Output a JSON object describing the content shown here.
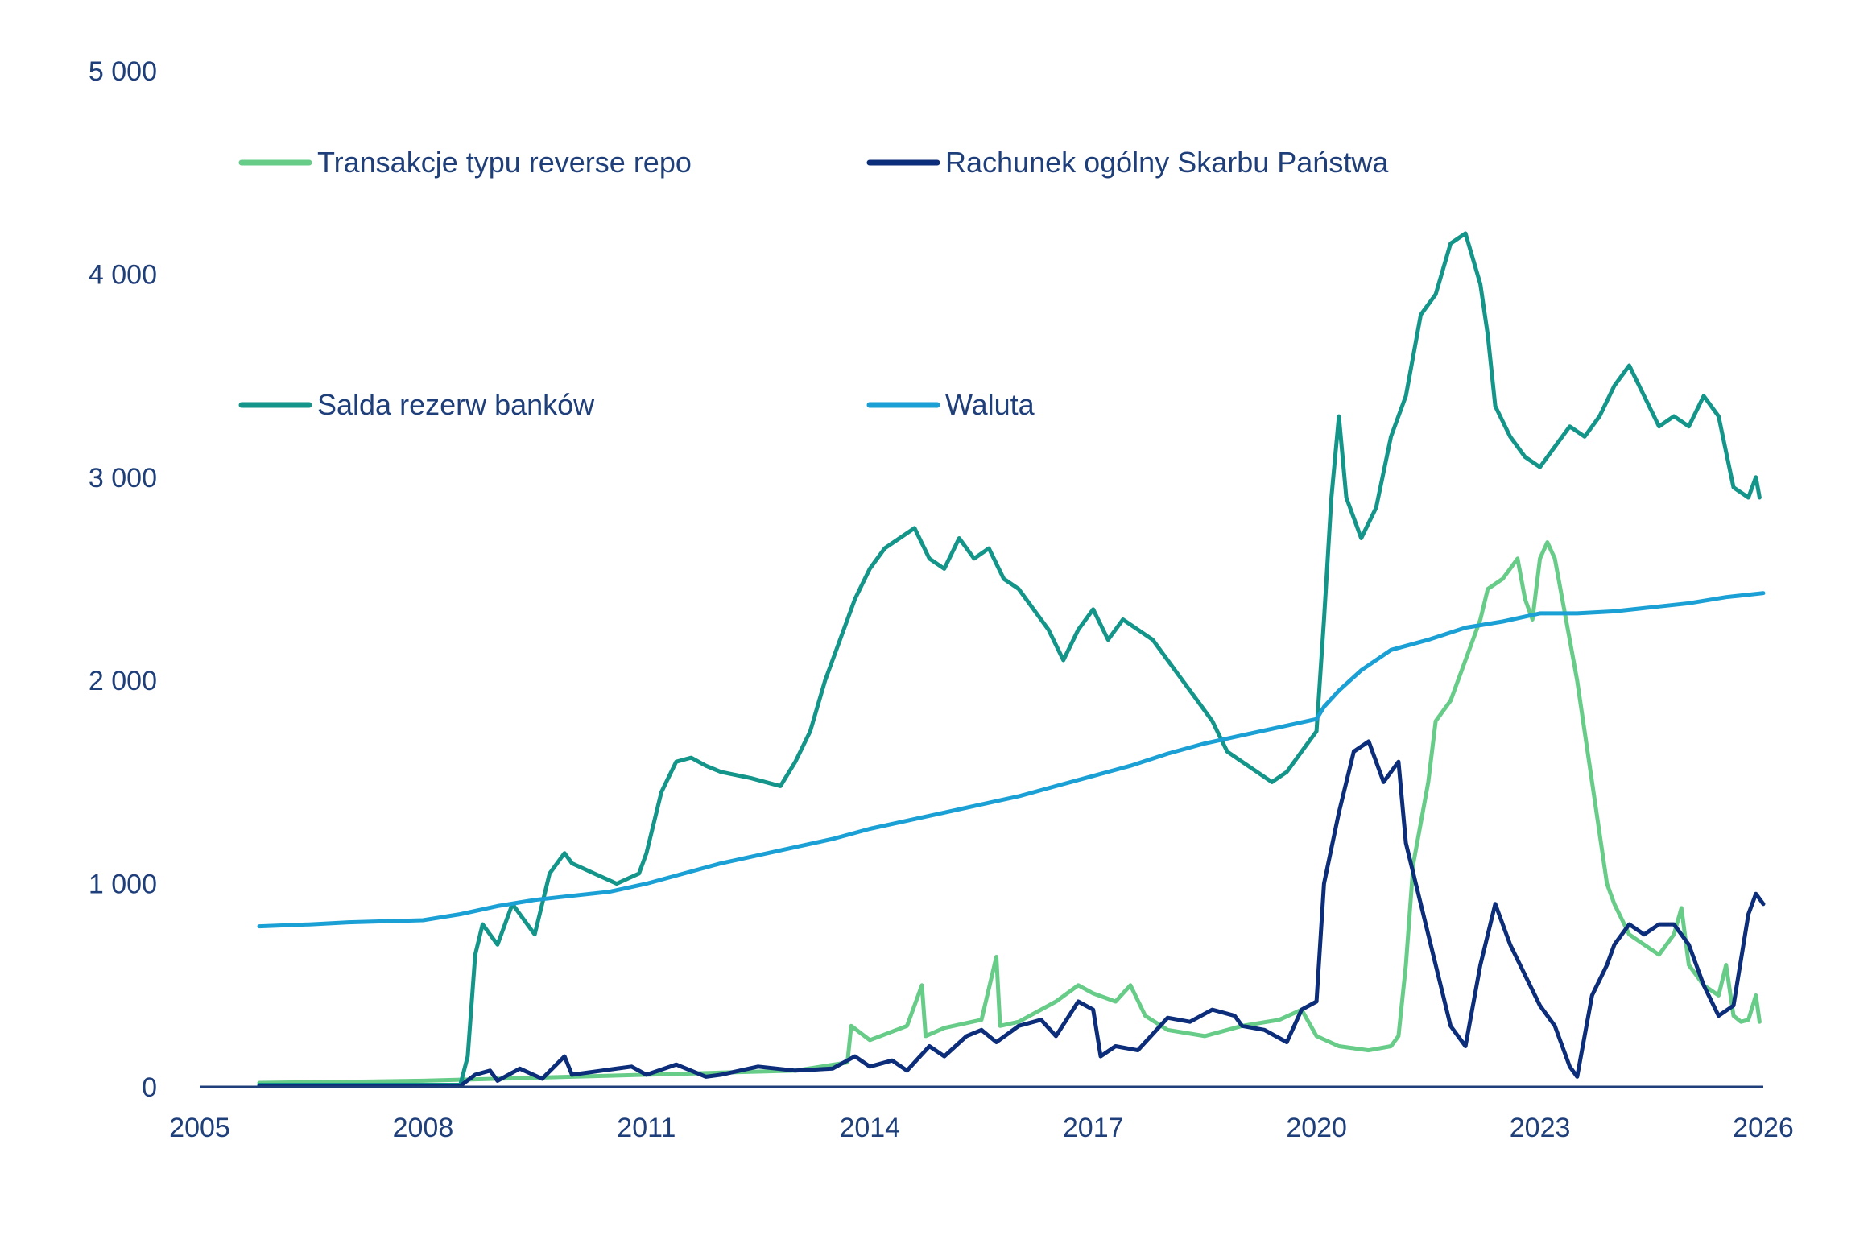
{
  "chart_data": {
    "type": "line",
    "title": "",
    "xlabel": "",
    "ylabel": "",
    "xlim": [
      2005,
      2026
    ],
    "ylim": [
      0,
      5000
    ],
    "x_ticks": [
      2005,
      2008,
      2011,
      2014,
      2017,
      2020,
      2023,
      2026
    ],
    "x_tick_labels": [
      "2005",
      "2008",
      "2011",
      "2014",
      "2017",
      "2020",
      "2023",
      "2026"
    ],
    "y_ticks": [
      0,
      1000,
      2000,
      3000,
      4000,
      5000
    ],
    "y_tick_labels": [
      "0",
      "1 000",
      "2 000",
      "3 000",
      "4 000",
      "5 000"
    ],
    "grid": false,
    "legend_position": "top-left",
    "series": [
      {
        "name": "Transakcje typu reverse repo",
        "color": "#66cc88",
        "points": [
          [
            2005.8,
            20
          ],
          [
            2007.0,
            25
          ],
          [
            2008.0,
            30
          ],
          [
            2009.0,
            40
          ],
          [
            2010.0,
            50
          ],
          [
            2011.0,
            60
          ],
          [
            2012.0,
            70
          ],
          [
            2013.0,
            80
          ],
          [
            2013.7,
            120
          ],
          [
            2013.75,
            300
          ],
          [
            2014.0,
            230
          ],
          [
            2014.5,
            300
          ],
          [
            2014.7,
            500
          ],
          [
            2014.75,
            250
          ],
          [
            2015.0,
            290
          ],
          [
            2015.5,
            330
          ],
          [
            2015.7,
            640
          ],
          [
            2015.75,
            300
          ],
          [
            2016.0,
            320
          ],
          [
            2016.5,
            420
          ],
          [
            2016.8,
            500
          ],
          [
            2017.0,
            460
          ],
          [
            2017.3,
            420
          ],
          [
            2017.5,
            500
          ],
          [
            2017.7,
            350
          ],
          [
            2018.0,
            280
          ],
          [
            2018.5,
            250
          ],
          [
            2019.0,
            300
          ],
          [
            2019.5,
            330
          ],
          [
            2019.8,
            380
          ],
          [
            2020.0,
            250
          ],
          [
            2020.3,
            200
          ],
          [
            2020.7,
            180
          ],
          [
            2021.0,
            200
          ],
          [
            2021.1,
            250
          ],
          [
            2021.2,
            600
          ],
          [
            2021.3,
            1100
          ],
          [
            2021.5,
            1500
          ],
          [
            2021.6,
            1800
          ],
          [
            2021.8,
            1900
          ],
          [
            2022.0,
            2100
          ],
          [
            2022.2,
            2300
          ],
          [
            2022.3,
            2450
          ],
          [
            2022.5,
            2500
          ],
          [
            2022.7,
            2600
          ],
          [
            2022.8,
            2400
          ],
          [
            2022.9,
            2300
          ],
          [
            2023.0,
            2600
          ],
          [
            2023.1,
            2680
          ],
          [
            2023.2,
            2600
          ],
          [
            2023.4,
            2200
          ],
          [
            2023.5,
            2000
          ],
          [
            2023.7,
            1500
          ],
          [
            2023.9,
            1000
          ],
          [
            2024.0,
            900
          ],
          [
            2024.2,
            750
          ],
          [
            2024.4,
            700
          ],
          [
            2024.6,
            650
          ],
          [
            2024.8,
            750
          ],
          [
            2024.9,
            880
          ],
          [
            2025.0,
            600
          ],
          [
            2025.2,
            500
          ],
          [
            2025.4,
            450
          ],
          [
            2025.5,
            600
          ],
          [
            2025.6,
            350
          ],
          [
            2025.7,
            320
          ],
          [
            2025.8,
            330
          ],
          [
            2025.9,
            450
          ],
          [
            2025.95,
            320
          ]
        ]
      },
      {
        "name": "Rachunek ogólny Skarbu Państwa",
        "color": "#0c2d7a",
        "points": [
          [
            2005.8,
            5
          ],
          [
            2007.0,
            5
          ],
          [
            2008.0,
            5
          ],
          [
            2008.5,
            5
          ],
          [
            2008.7,
            60
          ],
          [
            2008.9,
            80
          ],
          [
            2009.0,
            30
          ],
          [
            2009.3,
            90
          ],
          [
            2009.6,
            40
          ],
          [
            2009.9,
            150
          ],
          [
            2010.0,
            60
          ],
          [
            2010.4,
            80
          ],
          [
            2010.8,
            100
          ],
          [
            2011.0,
            60
          ],
          [
            2011.4,
            110
          ],
          [
            2011.8,
            50
          ],
          [
            2012.0,
            60
          ],
          [
            2012.5,
            100
          ],
          [
            2013.0,
            80
          ],
          [
            2013.5,
            90
          ],
          [
            2013.8,
            150
          ],
          [
            2014.0,
            100
          ],
          [
            2014.3,
            130
          ],
          [
            2014.5,
            80
          ],
          [
            2014.8,
            200
          ],
          [
            2015.0,
            150
          ],
          [
            2015.3,
            250
          ],
          [
            2015.5,
            280
          ],
          [
            2015.7,
            220
          ],
          [
            2016.0,
            300
          ],
          [
            2016.3,
            330
          ],
          [
            2016.5,
            250
          ],
          [
            2016.8,
            420
          ],
          [
            2017.0,
            380
          ],
          [
            2017.1,
            150
          ],
          [
            2017.3,
            200
          ],
          [
            2017.6,
            180
          ],
          [
            2017.8,
            260
          ],
          [
            2018.0,
            340
          ],
          [
            2018.3,
            320
          ],
          [
            2018.6,
            380
          ],
          [
            2018.9,
            350
          ],
          [
            2019.0,
            300
          ],
          [
            2019.3,
            280
          ],
          [
            2019.6,
            220
          ],
          [
            2019.8,
            380
          ],
          [
            2020.0,
            420
          ],
          [
            2020.1,
            1000
          ],
          [
            2020.3,
            1350
          ],
          [
            2020.5,
            1650
          ],
          [
            2020.7,
            1700
          ],
          [
            2020.9,
            1500
          ],
          [
            2021.1,
            1600
          ],
          [
            2021.2,
            1200
          ],
          [
            2021.4,
            900
          ],
          [
            2021.6,
            600
          ],
          [
            2021.8,
            300
          ],
          [
            2022.0,
            200
          ],
          [
            2022.2,
            600
          ],
          [
            2022.4,
            900
          ],
          [
            2022.6,
            700
          ],
          [
            2022.8,
            550
          ],
          [
            2023.0,
            400
          ],
          [
            2023.2,
            300
          ],
          [
            2023.4,
            100
          ],
          [
            2023.5,
            50
          ],
          [
            2023.7,
            450
          ],
          [
            2023.9,
            600
          ],
          [
            2024.0,
            700
          ],
          [
            2024.2,
            800
          ],
          [
            2024.4,
            750
          ],
          [
            2024.6,
            800
          ],
          [
            2024.8,
            800
          ],
          [
            2025.0,
            700
          ],
          [
            2025.2,
            500
          ],
          [
            2025.4,
            350
          ],
          [
            2025.6,
            400
          ],
          [
            2025.8,
            850
          ],
          [
            2025.9,
            950
          ],
          [
            2026.0,
            900
          ]
        ]
      },
      {
        "name": "Salda rezerw banków",
        "color": "#13958a",
        "points": [
          [
            2005.8,
            10
          ],
          [
            2007.0,
            10
          ],
          [
            2008.0,
            10
          ],
          [
            2008.5,
            10
          ],
          [
            2008.6,
            150
          ],
          [
            2008.7,
            650
          ],
          [
            2008.8,
            800
          ],
          [
            2009.0,
            700
          ],
          [
            2009.2,
            900
          ],
          [
            2009.5,
            750
          ],
          [
            2009.7,
            1050
          ],
          [
            2009.9,
            1150
          ],
          [
            2010.0,
            1100
          ],
          [
            2010.3,
            1050
          ],
          [
            2010.6,
            1000
          ],
          [
            2010.9,
            1050
          ],
          [
            2011.0,
            1150
          ],
          [
            2011.2,
            1450
          ],
          [
            2011.4,
            1600
          ],
          [
            2011.6,
            1620
          ],
          [
            2011.8,
            1580
          ],
          [
            2012.0,
            1550
          ],
          [
            2012.4,
            1520
          ],
          [
            2012.8,
            1480
          ],
          [
            2013.0,
            1600
          ],
          [
            2013.2,
            1750
          ],
          [
            2013.4,
            2000
          ],
          [
            2013.6,
            2200
          ],
          [
            2013.8,
            2400
          ],
          [
            2014.0,
            2550
          ],
          [
            2014.2,
            2650
          ],
          [
            2014.4,
            2700
          ],
          [
            2014.6,
            2750
          ],
          [
            2014.8,
            2600
          ],
          [
            2015.0,
            2550
          ],
          [
            2015.2,
            2700
          ],
          [
            2015.4,
            2600
          ],
          [
            2015.6,
            2650
          ],
          [
            2015.8,
            2500
          ],
          [
            2016.0,
            2450
          ],
          [
            2016.2,
            2350
          ],
          [
            2016.4,
            2250
          ],
          [
            2016.6,
            2100
          ],
          [
            2016.8,
            2250
          ],
          [
            2017.0,
            2350
          ],
          [
            2017.2,
            2200
          ],
          [
            2017.4,
            2300
          ],
          [
            2017.6,
            2250
          ],
          [
            2017.8,
            2200
          ],
          [
            2018.0,
            2100
          ],
          [
            2018.2,
            2000
          ],
          [
            2018.4,
            1900
          ],
          [
            2018.6,
            1800
          ],
          [
            2018.8,
            1650
          ],
          [
            2019.0,
            1600
          ],
          [
            2019.2,
            1550
          ],
          [
            2019.4,
            1500
          ],
          [
            2019.6,
            1550
          ],
          [
            2019.8,
            1650
          ],
          [
            2020.0,
            1750
          ],
          [
            2020.1,
            2300
          ],
          [
            2020.2,
            2900
          ],
          [
            2020.3,
            3300
          ],
          [
            2020.4,
            2900
          ],
          [
            2020.6,
            2700
          ],
          [
            2020.8,
            2850
          ],
          [
            2021.0,
            3200
          ],
          [
            2021.2,
            3400
          ],
          [
            2021.4,
            3800
          ],
          [
            2021.6,
            3900
          ],
          [
            2021.8,
            4150
          ],
          [
            2022.0,
            4200
          ],
          [
            2022.2,
            3950
          ],
          [
            2022.3,
            3700
          ],
          [
            2022.4,
            3350
          ],
          [
            2022.6,
            3200
          ],
          [
            2022.8,
            3100
          ],
          [
            2023.0,
            3050
          ],
          [
            2023.2,
            3150
          ],
          [
            2023.4,
            3250
          ],
          [
            2023.6,
            3200
          ],
          [
            2023.8,
            3300
          ],
          [
            2024.0,
            3450
          ],
          [
            2024.2,
            3550
          ],
          [
            2024.4,
            3400
          ],
          [
            2024.6,
            3250
          ],
          [
            2024.8,
            3300
          ],
          [
            2025.0,
            3250
          ],
          [
            2025.2,
            3400
          ],
          [
            2025.4,
            3300
          ],
          [
            2025.6,
            2950
          ],
          [
            2025.8,
            2900
          ],
          [
            2025.9,
            3000
          ],
          [
            2025.95,
            2900
          ]
        ]
      },
      {
        "name": "Waluta",
        "color": "#1aa0d4",
        "points": [
          [
            2005.8,
            790
          ],
          [
            2006.5,
            800
          ],
          [
            2007.0,
            810
          ],
          [
            2007.5,
            815
          ],
          [
            2008.0,
            820
          ],
          [
            2008.5,
            850
          ],
          [
            2009.0,
            890
          ],
          [
            2009.5,
            920
          ],
          [
            2010.0,
            940
          ],
          [
            2010.5,
            960
          ],
          [
            2011.0,
            1000
          ],
          [
            2011.5,
            1050
          ],
          [
            2012.0,
            1100
          ],
          [
            2012.5,
            1140
          ],
          [
            2013.0,
            1180
          ],
          [
            2013.5,
            1220
          ],
          [
            2014.0,
            1270
          ],
          [
            2014.5,
            1310
          ],
          [
            2015.0,
            1350
          ],
          [
            2015.5,
            1390
          ],
          [
            2016.0,
            1430
          ],
          [
            2016.5,
            1480
          ],
          [
            2017.0,
            1530
          ],
          [
            2017.5,
            1580
          ],
          [
            2018.0,
            1640
          ],
          [
            2018.5,
            1690
          ],
          [
            2019.0,
            1730
          ],
          [
            2019.5,
            1770
          ],
          [
            2020.0,
            1810
          ],
          [
            2020.1,
            1870
          ],
          [
            2020.3,
            1950
          ],
          [
            2020.6,
            2050
          ],
          [
            2021.0,
            2150
          ],
          [
            2021.5,
            2200
          ],
          [
            2022.0,
            2260
          ],
          [
            2022.5,
            2290
          ],
          [
            2023.0,
            2330
          ],
          [
            2023.5,
            2330
          ],
          [
            2024.0,
            2340
          ],
          [
            2024.5,
            2360
          ],
          [
            2025.0,
            2380
          ],
          [
            2025.5,
            2410
          ],
          [
            2026.0,
            2430
          ]
        ]
      }
    ]
  }
}
